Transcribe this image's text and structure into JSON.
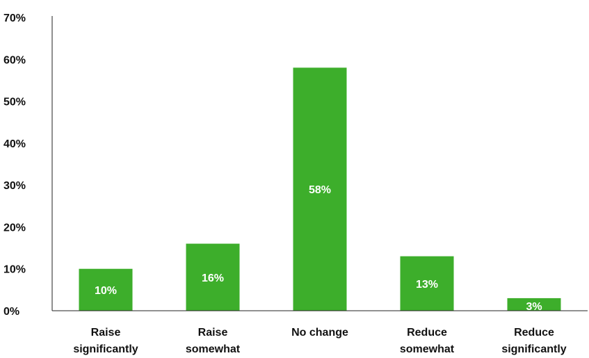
{
  "chart_data": {
    "type": "bar",
    "categories": [
      [
        "Raise",
        "significantly"
      ],
      [
        "Raise",
        "somewhat"
      ],
      [
        "No change"
      ],
      [
        "Reduce",
        "somewhat"
      ],
      [
        "Reduce",
        "significantly"
      ]
    ],
    "values": [
      10,
      16,
      58,
      13,
      3
    ],
    "value_labels": [
      "10%",
      "16%",
      "58%",
      "13%",
      "3%"
    ],
    "y_ticks": [
      "0%",
      "10%",
      "20%",
      "30%",
      "40%",
      "50%",
      "60%",
      "70%"
    ],
    "ylim": [
      0,
      70
    ],
    "y_unit": "%",
    "bar_color": "#3dae2b",
    "grid": false,
    "legend": "none",
    "title": "",
    "xlabel": "",
    "ylabel": ""
  }
}
